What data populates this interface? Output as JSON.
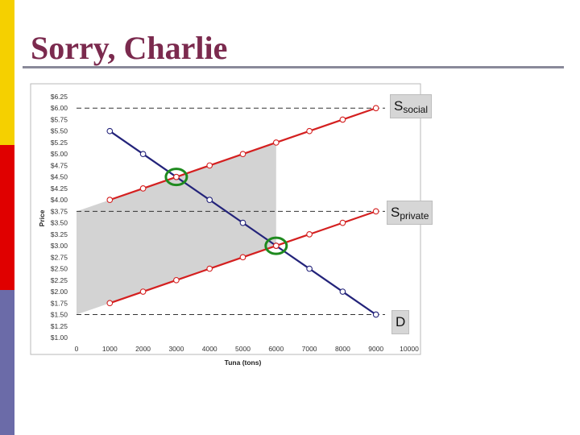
{
  "slide": {
    "title": "Sorry, Charlie",
    "accent_colors": [
      "#f5d000",
      "#e00000",
      "#6b6ba8"
    ]
  },
  "labels": {
    "s_social": {
      "main": "S",
      "sub": "social"
    },
    "s_private": {
      "main": "S",
      "sub": "private"
    },
    "d": {
      "main": "D",
      "sub": ""
    }
  },
  "chart_data": {
    "type": "line",
    "title": "",
    "xlabel": "Tuna (tons)",
    "ylabel": "Price",
    "xlim": [
      0,
      10000
    ],
    "ylim": [
      1.0,
      6.25
    ],
    "x_ticks": [
      0,
      1000,
      2000,
      3000,
      4000,
      5000,
      6000,
      7000,
      8000,
      9000,
      10000
    ],
    "x_tick_labels": [
      "0",
      "1000",
      "2000",
      "3000",
      "4000",
      "5000",
      "6000",
      "7000",
      "8000",
      "9000",
      "10000"
    ],
    "y_ticks": [
      6.25,
      6.0,
      5.75,
      5.5,
      5.25,
      5.0,
      4.75,
      4.5,
      4.25,
      4.0,
      3.75,
      3.5,
      3.25,
      3.0,
      2.75,
      2.5,
      2.25,
      2.0,
      1.75,
      1.5,
      1.25,
      1.0
    ],
    "y_tick_labels": [
      "$6.25",
      "$6.00",
      "$5.75",
      "$5.50",
      "$5.25",
      "$5.00",
      "$4.75",
      "$4.50",
      "$4.25",
      "$4.00",
      "$3.75",
      "$3.50",
      "$3.25",
      "$3.00",
      "$2.75",
      "$2.50",
      "$2.25",
      "$2.00",
      "$1.75",
      "$1.50",
      "$1.25",
      "$1.00"
    ],
    "grid": false,
    "series": [
      {
        "key": "d",
        "color": "#23237a",
        "x": [
          1000,
          2000,
          3000,
          4000,
          5000,
          6000,
          7000,
          8000,
          9000
        ],
        "y": [
          5.5,
          5.0,
          4.5,
          4.0,
          3.5,
          3.0,
          2.5,
          2.0,
          1.5
        ]
      },
      {
        "key": "s_private",
        "color": "#d42020",
        "x": [
          1000,
          2000,
          3000,
          4000,
          5000,
          6000,
          7000,
          8000,
          9000
        ],
        "y": [
          1.75,
          2.0,
          2.25,
          2.5,
          2.75,
          3.0,
          3.25,
          3.5,
          3.75
        ]
      },
      {
        "key": "s_social",
        "color": "#d42020",
        "x": [
          1000,
          2000,
          3000,
          4000,
          5000,
          6000,
          7000,
          8000,
          9000
        ],
        "y": [
          4.0,
          4.25,
          4.5,
          4.75,
          5.0,
          5.25,
          5.5,
          5.75,
          6.0
        ]
      }
    ],
    "reference_lines_y": [
      6.0,
      3.75,
      1.5
    ],
    "shaded_region": [
      [
        0,
        1.5
      ],
      [
        0,
        3.75
      ],
      [
        6000,
        5.25
      ],
      [
        6000,
        3.0
      ]
    ],
    "highlighted_points": [
      [
        3000,
        4.5
      ],
      [
        6000,
        3.0
      ]
    ]
  }
}
